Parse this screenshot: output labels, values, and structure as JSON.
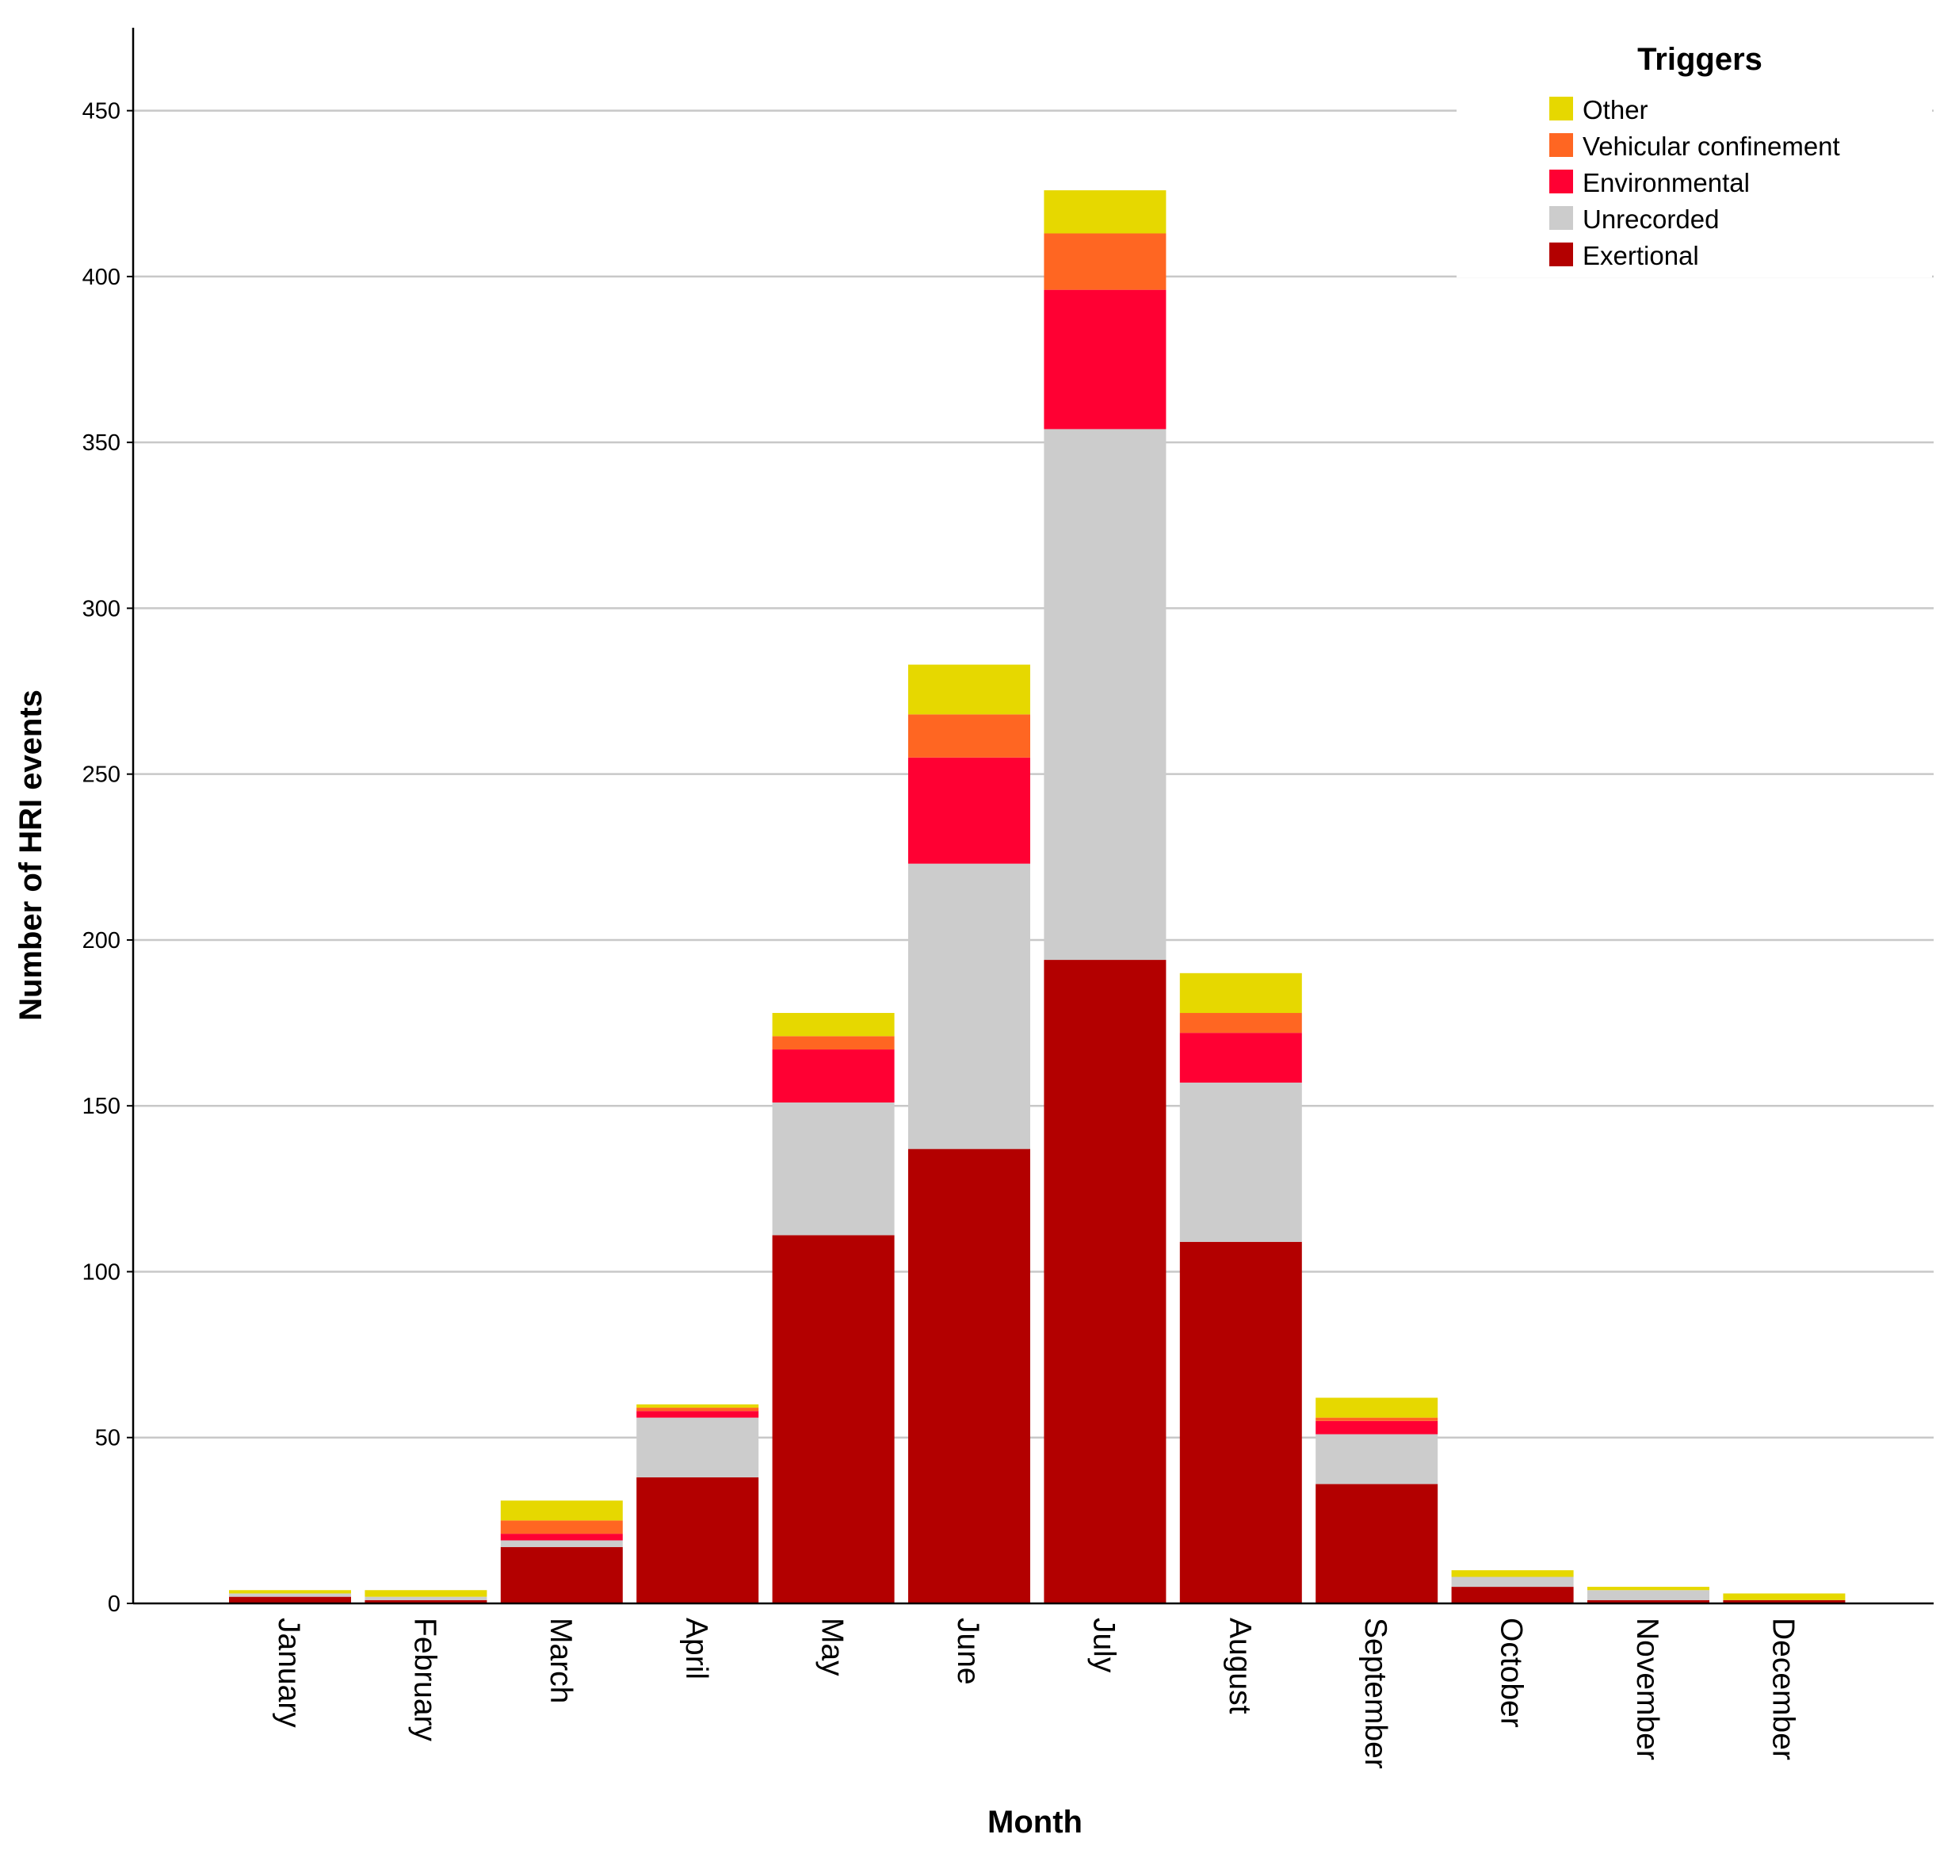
{
  "chart_data": {
    "type": "bar",
    "stacked": true,
    "xlabel": "Month",
    "ylabel": "Number of HRI events",
    "ylim": [
      0,
      475
    ],
    "yticks": [
      0,
      50,
      100,
      150,
      200,
      250,
      300,
      350,
      400,
      450
    ],
    "grid": true,
    "legend_position": "top-right",
    "legend_title": "Triggers",
    "categories": [
      "January",
      "February",
      "March",
      "April",
      "May",
      "June",
      "July",
      "August",
      "September",
      "October",
      "November",
      "December"
    ],
    "series": [
      {
        "name": "Exertional",
        "color": "#b30000",
        "values": [
          2,
          1,
          17,
          38,
          111,
          137,
          194,
          109,
          36,
          5,
          1,
          1
        ]
      },
      {
        "name": "Unrecorded",
        "color": "#cccccc",
        "values": [
          1,
          1,
          2,
          18,
          40,
          86,
          160,
          48,
          15,
          3,
          3,
          0
        ]
      },
      {
        "name": "Environmental",
        "color": "#ff0033",
        "values": [
          0,
          0,
          2,
          2,
          16,
          32,
          42,
          15,
          4,
          0,
          0,
          0
        ]
      },
      {
        "name": "Vehicular confinement",
        "color": "#ff6622",
        "values": [
          0,
          0,
          4,
          1,
          4,
          13,
          17,
          6,
          1,
          0,
          0,
          0
        ]
      },
      {
        "name": "Other",
        "color": "#e6d800",
        "values": [
          1,
          2,
          6,
          1,
          7,
          15,
          13,
          12,
          6,
          2,
          1,
          2
        ]
      }
    ],
    "legend_order": [
      "Other",
      "Vehicular confinement",
      "Environmental",
      "Unrecorded",
      "Exertional"
    ]
  }
}
